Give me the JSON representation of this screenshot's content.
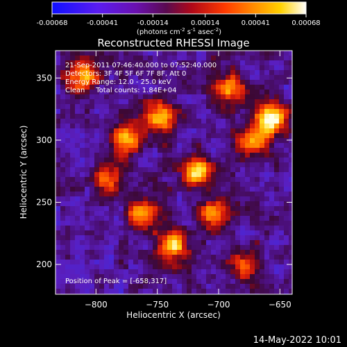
{
  "chart_data": {
    "type": "heatmap",
    "title": "Reconstructed RHESSI Image",
    "xlabel": "Heliocentric X (arcsec)",
    "ylabel": "Heliocentric Y (arcsec)",
    "xlim": [
      -833,
      -640
    ],
    "ylim": [
      176,
      372
    ],
    "xticks": [
      -800,
      -750,
      -700,
      -650
    ],
    "yticks": [
      200,
      250,
      300,
      350
    ],
    "colorbar": {
      "ticks": [
        "-0.00068",
        "-0.00041",
        "-0.00014",
        "0.00014",
        "0.00041",
        "0.00068"
      ],
      "range": [
        -0.00068,
        0.00068
      ],
      "unit_parts": [
        "(photons cm",
        "-2",
        " s",
        "-1",
        " asec",
        "-2",
        ")"
      ]
    },
    "colormap": [
      "#1028ff",
      "#4b1fd0",
      "#3b3fd8",
      "#4a1078",
      "#8a0b3c",
      "#c81010",
      "#ff5a00",
      "#ff9a00",
      "#ffd000",
      "#ffffaa",
      "#ffffff"
    ],
    "annotations": [
      "21-Sep-2011 07:46:40.000 to 07:52:40.000",
      "Detectors: 3F 4F 5F 6F 7F 8F, Att 0",
      "Energy Range: 12.0 - 25.0 keV",
      "Clean     Total counts: 1.84E+04"
    ],
    "peak_label": "Position of Peak = [-658,317]",
    "peak": [
      -658,
      317
    ],
    "hot_sources": [
      {
        "x": -658,
        "y": 317,
        "intensity": 1.0
      },
      {
        "x": -775,
        "y": 300,
        "intensity": 0.85
      },
      {
        "x": -748,
        "y": 318,
        "intensity": 0.75
      },
      {
        "x": -718,
        "y": 275,
        "intensity": 0.8
      },
      {
        "x": -738,
        "y": 215,
        "intensity": 0.85
      },
      {
        "x": -762,
        "y": 240,
        "intensity": 0.7
      },
      {
        "x": -705,
        "y": 240,
        "intensity": 0.7
      },
      {
        "x": -812,
        "y": 352,
        "intensity": 0.75
      },
      {
        "x": -690,
        "y": 340,
        "intensity": 0.7
      },
      {
        "x": -672,
        "y": 300,
        "intensity": 0.7
      },
      {
        "x": -790,
        "y": 270,
        "intensity": 0.55
      },
      {
        "x": -680,
        "y": 200,
        "intensity": 0.5
      }
    ]
  },
  "footer": {
    "timestamp": "14-May-2022 10:01"
  }
}
